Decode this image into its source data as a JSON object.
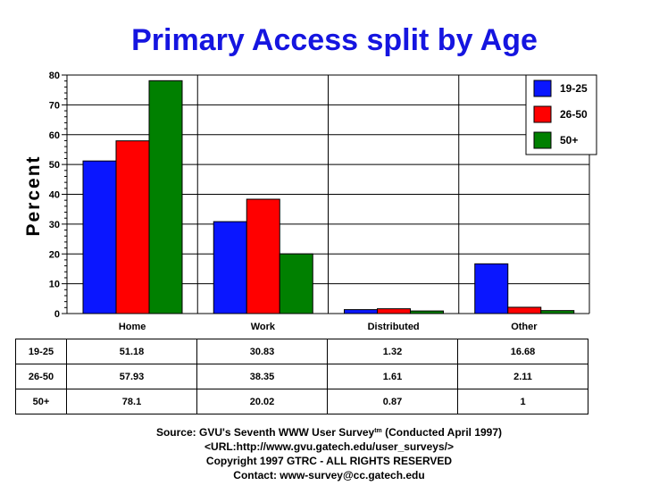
{
  "chart_data": {
    "type": "bar",
    "title": "Primary Access split by Age",
    "ylabel": "Percent",
    "xlabel": "",
    "ylim": [
      0,
      80
    ],
    "yticks": [
      0,
      10,
      20,
      30,
      40,
      50,
      60,
      70,
      80
    ],
    "grid": true,
    "legend_position": "top-right",
    "categories": [
      "Home",
      "Work",
      "Distributed",
      "Other"
    ],
    "series": [
      {
        "name": "19-25",
        "color": "#0a16ff",
        "values": [
          51.18,
          30.83,
          1.32,
          16.68
        ]
      },
      {
        "name": "26-50",
        "color": "#ff0000",
        "values": [
          57.93,
          38.35,
          1.61,
          2.11
        ]
      },
      {
        "name": "50+",
        "color": "#008000",
        "values": [
          78.1,
          20.02,
          0.87,
          1
        ]
      }
    ]
  },
  "table": {
    "rows": [
      {
        "label": "19-25",
        "cells": [
          "51.18",
          "30.83",
          "1.32",
          "16.68"
        ]
      },
      {
        "label": "26-50",
        "cells": [
          "57.93",
          "38.35",
          "1.61",
          "2.11"
        ]
      },
      {
        "label": "50+",
        "cells": [
          "78.1",
          "20.02",
          "0.87",
          "1"
        ]
      }
    ]
  },
  "footer": {
    "source_prefix": "Source: GVU's Seventh WWW User Survey",
    "source_tm": "tm",
    "source_suffix": " (Conducted April 1997)",
    "url": "<URL:http://www.gvu.gatech.edu/user_surveys/>",
    "copyright": "Copyright 1997 GTRC - ALL RIGHTS RESERVED",
    "contact": "Contact: www-survey@cc.gatech.edu"
  }
}
